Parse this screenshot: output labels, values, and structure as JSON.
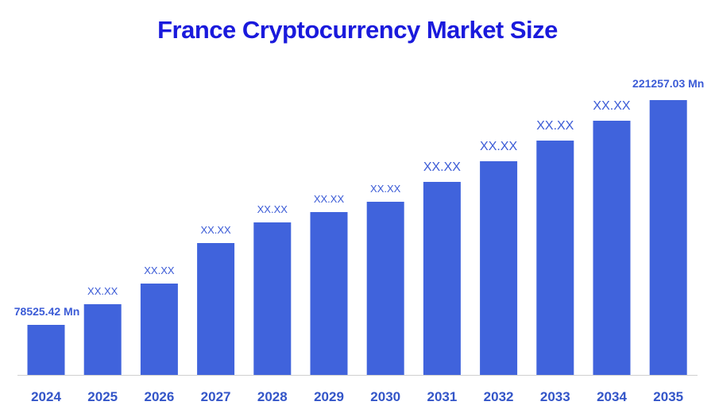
{
  "chart_data": {
    "type": "bar",
    "title": "France Cryptocurrency Market Size",
    "categories": [
      "2024",
      "2025",
      "2026",
      "2027",
      "2028",
      "2029",
      "2030",
      "2031",
      "2032",
      "2033",
      "2034",
      "2035"
    ],
    "values": [
      78525.42,
      91640,
      104750,
      130480,
      143590,
      150150,
      156700,
      169320,
      182430,
      195550,
      208160,
      221257.03
    ],
    "data_labels": [
      "78525.42 Mn",
      "XX.XX",
      "XX.XX",
      "XX.XX",
      "XX.XX",
      "XX.XX",
      "XX.XX",
      "XX.XX",
      "XX.XX",
      "XX.XX",
      "XX.XX",
      "221257.03 Mn"
    ],
    "xlabel": "",
    "ylabel": "",
    "grid": false,
    "legend": "none",
    "colors": {
      "bar": "#4063DC",
      "title": "#1A1ADC",
      "labels": "#3B5BD6"
    }
  }
}
